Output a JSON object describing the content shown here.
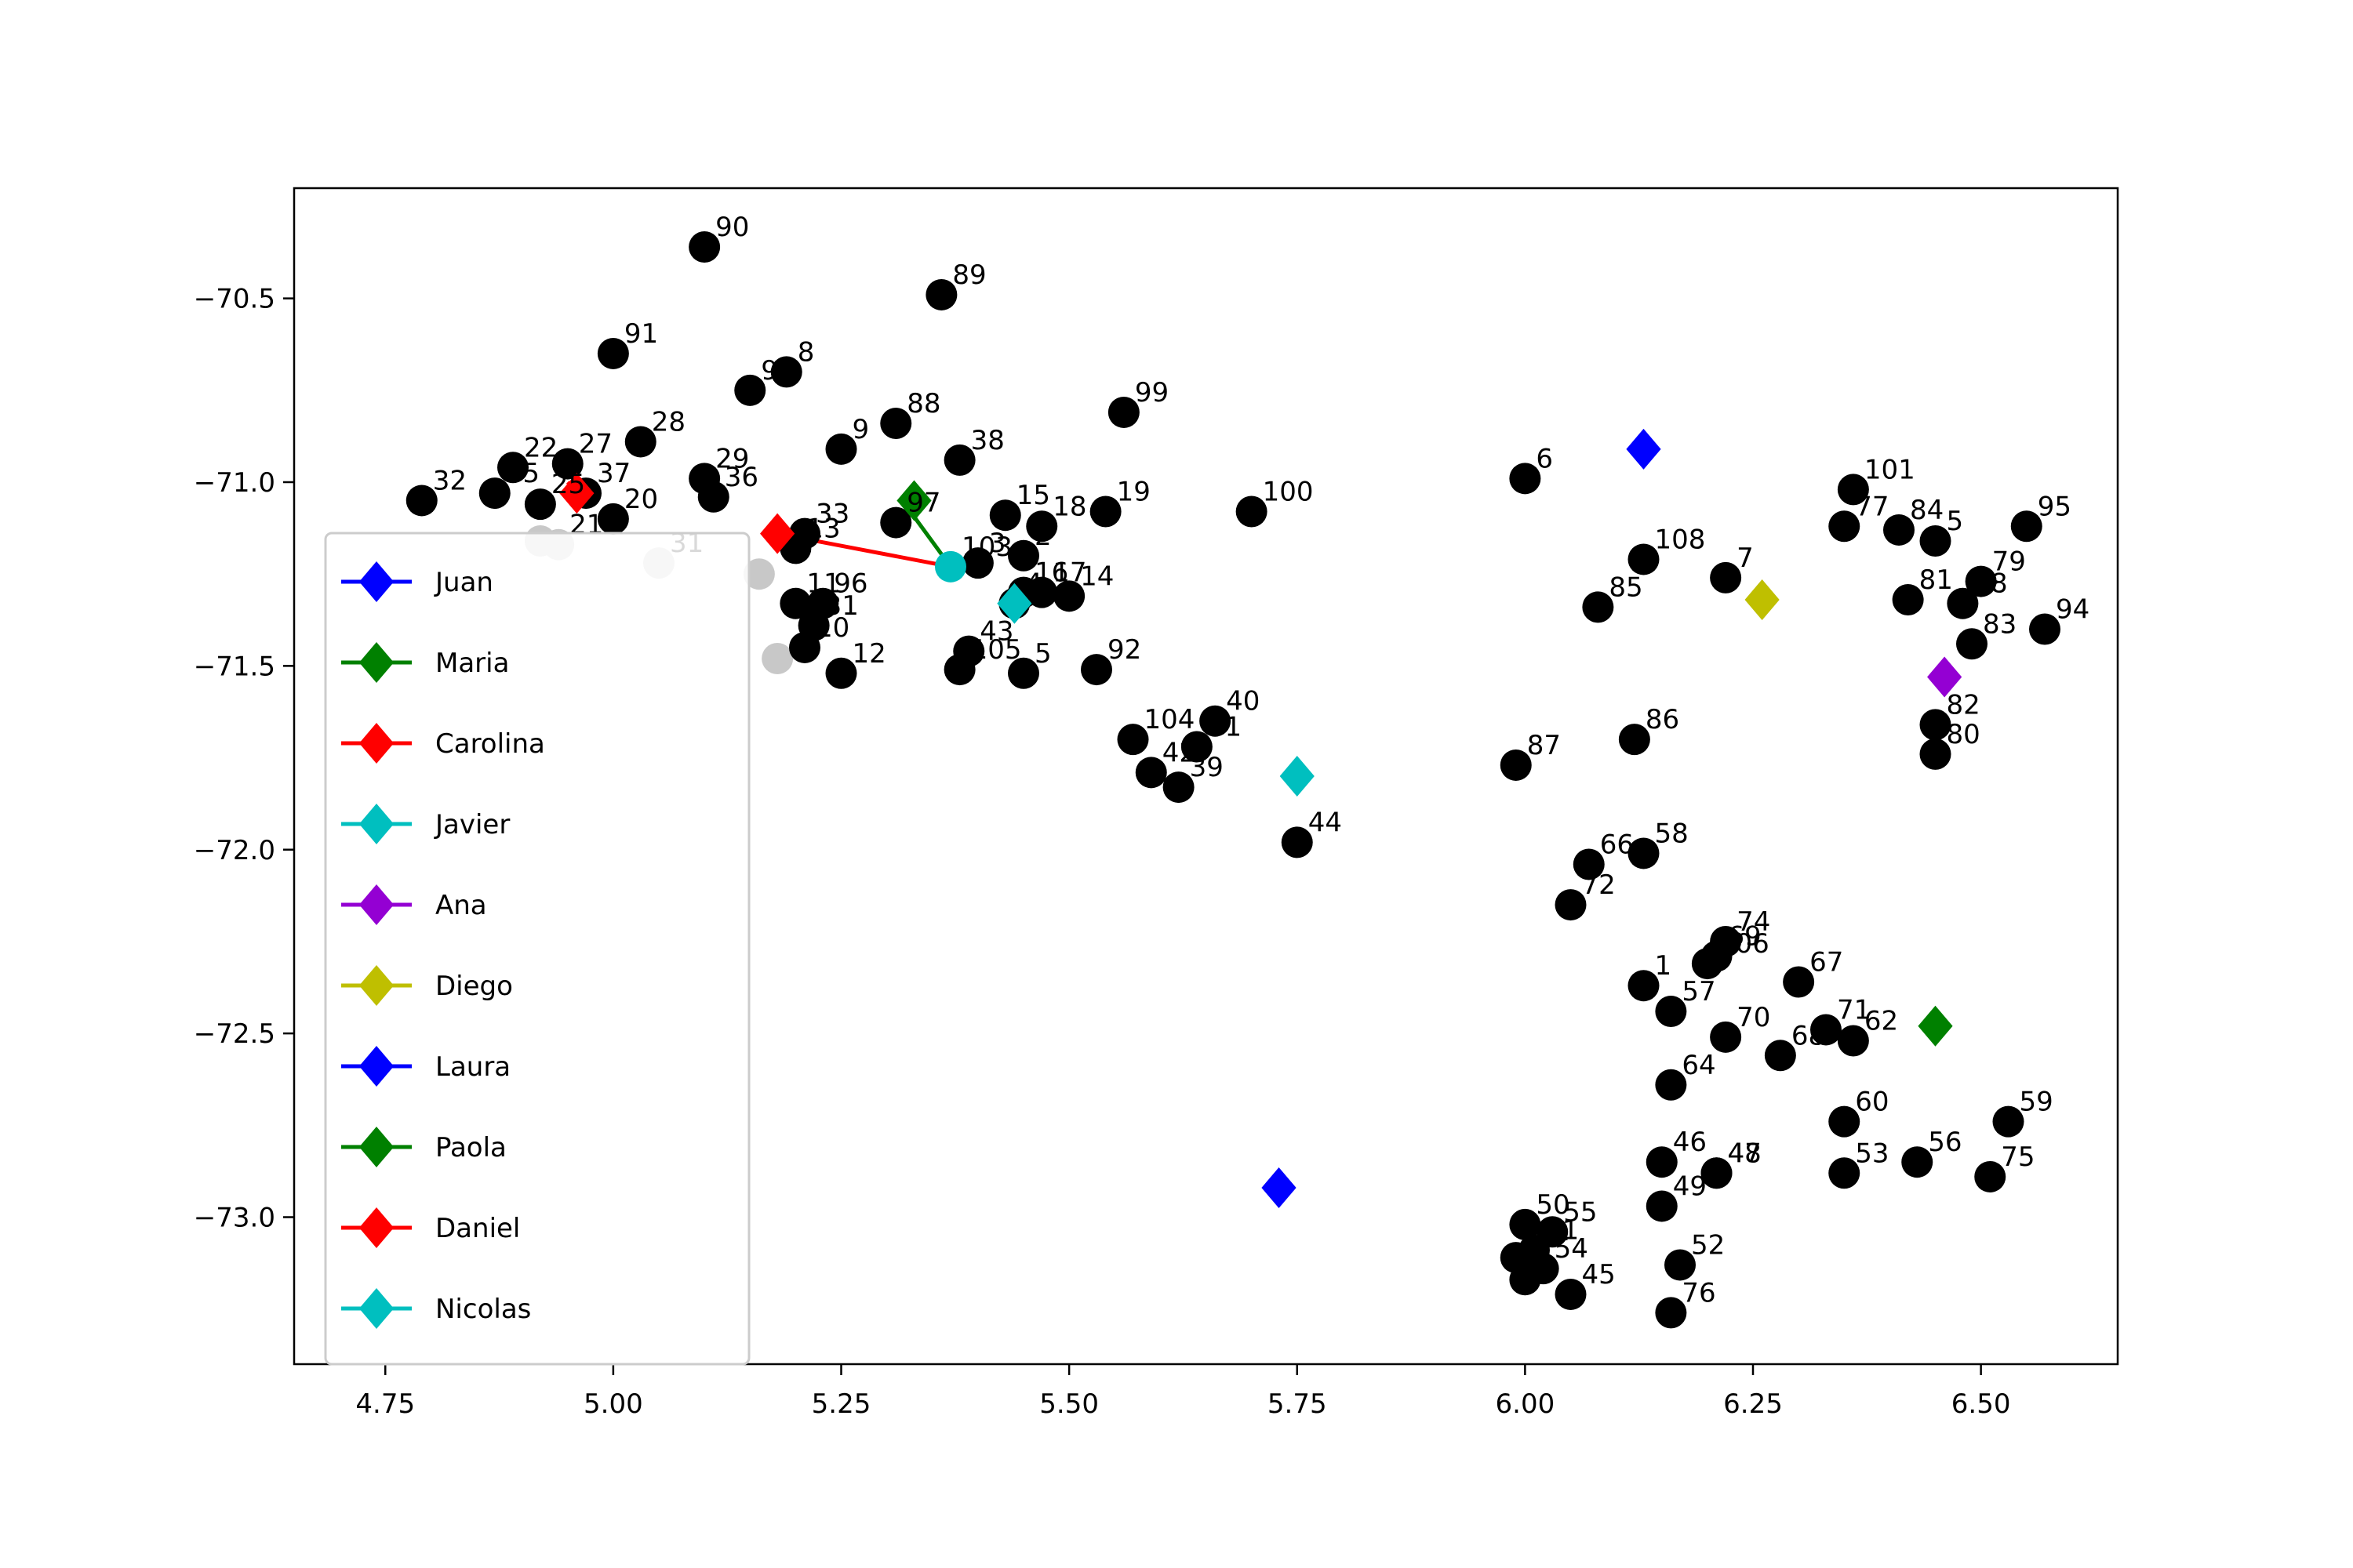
{
  "chart_data": {
    "type": "scatter",
    "title": "",
    "xlabel": "",
    "ylabel": "",
    "xlim": [
      4.65,
      6.65
    ],
    "ylim": [
      -73.4,
      -70.2
    ],
    "x_ticks": [
      4.75,
      5.0,
      5.25,
      5.5,
      5.75,
      6.0,
      6.25,
      6.5
    ],
    "x_tick_labels": [
      "4.75",
      "5.00",
      "5.25",
      "5.50",
      "5.75",
      "6.00",
      "6.25",
      "6.50"
    ],
    "y_ticks": [
      -70.5,
      -71.0,
      -71.5,
      -72.0,
      -72.5,
      -73.0
    ],
    "y_tick_labels": [
      "−70.5",
      "−71.0",
      "−71.5",
      "−72.0",
      "−72.5",
      "−73.0"
    ],
    "grid": false,
    "legend_position": "lower-left",
    "node_color": "#000000",
    "visited_color": "#c8c8c8",
    "points": [
      {
        "label": "90",
        "x": 5.1,
        "y": -70.36
      },
      {
        "label": "89",
        "x": 5.36,
        "y": -70.49
      },
      {
        "label": "91",
        "x": 5.0,
        "y": -70.65
      },
      {
        "label": "9",
        "x": 5.15,
        "y": -70.75
      },
      {
        "label": "8",
        "x": 5.19,
        "y": -70.7
      },
      {
        "label": "99",
        "x": 5.56,
        "y": -70.81
      },
      {
        "label": "88",
        "x": 5.31,
        "y": -70.84
      },
      {
        "label": "9",
        "x": 5.25,
        "y": -70.91
      },
      {
        "label": "28",
        "x": 5.03,
        "y": -70.89
      },
      {
        "label": "38",
        "x": 5.38,
        "y": -70.94
      },
      {
        "label": "27",
        "x": 4.95,
        "y": -70.95
      },
      {
        "label": "22",
        "x": 4.89,
        "y": -70.96
      },
      {
        "label": "29",
        "x": 5.1,
        "y": -70.99
      },
      {
        "label": "36",
        "x": 5.11,
        "y": -71.04
      },
      {
        "label": "32",
        "x": 4.79,
        "y": -71.05
      },
      {
        "label": "35",
        "x": 4.87,
        "y": -71.03
      },
      {
        "label": "37",
        "x": 4.97,
        "y": -71.03
      },
      {
        "label": "20",
        "x": 5.0,
        "y": -71.1
      },
      {
        "label": "25",
        "x": 4.92,
        "y": -71.06
      },
      {
        "label": "6",
        "x": 6.0,
        "y": -70.99
      },
      {
        "label": "101",
        "x": 6.36,
        "y": -71.02
      },
      {
        "label": "95",
        "x": 6.55,
        "y": -71.12
      },
      {
        "label": "77",
        "x": 6.35,
        "y": -71.12
      },
      {
        "label": "84",
        "x": 6.41,
        "y": -71.13
      },
      {
        "label": "5",
        "x": 6.45,
        "y": -71.16
      },
      {
        "label": "15",
        "x": 5.43,
        "y": -71.09
      },
      {
        "label": "18",
        "x": 5.47,
        "y": -71.12
      },
      {
        "label": "19",
        "x": 5.54,
        "y": -71.08
      },
      {
        "label": "100",
        "x": 5.7,
        "y": -71.08
      },
      {
        "label": "97",
        "x": 5.31,
        "y": -71.11
      },
      {
        "label": "33",
        "x": 5.21,
        "y": -71.14
      },
      {
        "label": "13",
        "x": 5.2,
        "y": -71.18
      },
      {
        "label": "3",
        "x": 5.4,
        "y": -71.22
      },
      {
        "label": "2",
        "x": 5.45,
        "y": -71.2
      },
      {
        "label": "108",
        "x": 6.13,
        "y": -71.21
      },
      {
        "label": "7",
        "x": 6.22,
        "y": -71.26
      },
      {
        "label": "79",
        "x": 6.5,
        "y": -71.27
      },
      {
        "label": "81",
        "x": 6.42,
        "y": -71.32
      },
      {
        "label": "78",
        "x": 6.48,
        "y": -71.33
      },
      {
        "label": "85",
        "x": 6.08,
        "y": -71.34
      },
      {
        "label": "94",
        "x": 6.57,
        "y": -71.4
      },
      {
        "label": "83",
        "x": 6.49,
        "y": -71.44
      },
      {
        "label": "16",
        "x": 5.45,
        "y": -71.3
      },
      {
        "label": "17",
        "x": 5.47,
        "y": -71.3
      },
      {
        "label": "14",
        "x": 5.5,
        "y": -71.31
      },
      {
        "label": "96",
        "x": 5.23,
        "y": -71.33
      },
      {
        "label": "11",
        "x": 5.2,
        "y": -71.33
      },
      {
        "label": "31",
        "x": 5.22,
        "y": -71.39
      },
      {
        "label": "4",
        "x": 5.44,
        "y": -71.33
      },
      {
        "label": "10",
        "x": 5.21,
        "y": -71.45
      },
      {
        "label": "12",
        "x": 5.25,
        "y": -71.52
      },
      {
        "label": "43",
        "x": 5.39,
        "y": -71.46
      },
      {
        "label": "105",
        "x": 5.38,
        "y": -71.51
      },
      {
        "label": "5",
        "x": 5.45,
        "y": -71.52
      },
      {
        "label": "92",
        "x": 5.53,
        "y": -71.51
      },
      {
        "label": "40",
        "x": 5.66,
        "y": -71.65
      },
      {
        "label": "41",
        "x": 5.64,
        "y": -71.72
      },
      {
        "label": "104",
        "x": 5.57,
        "y": -71.7
      },
      {
        "label": "42",
        "x": 5.59,
        "y": -71.79
      },
      {
        "label": "39",
        "x": 5.62,
        "y": -71.83
      },
      {
        "label": "82",
        "x": 6.45,
        "y": -71.66
      },
      {
        "label": "80",
        "x": 6.45,
        "y": -71.74
      },
      {
        "label": "86",
        "x": 6.12,
        "y": -71.7
      },
      {
        "label": "87",
        "x": 5.99,
        "y": -71.77
      },
      {
        "label": "44",
        "x": 5.75,
        "y": -71.98
      },
      {
        "label": "66",
        "x": 6.07,
        "y": -72.04
      },
      {
        "label": "58",
        "x": 6.13,
        "y": -72.01
      },
      {
        "label": "72",
        "x": 6.05,
        "y": -72.15
      },
      {
        "label": "74",
        "x": 6.22,
        "y": -72.25
      },
      {
        "label": "69",
        "x": 6.21,
        "y": -72.29
      },
      {
        "label": "106",
        "x": 6.2,
        "y": -72.31
      },
      {
        "label": "67",
        "x": 6.3,
        "y": -72.36
      },
      {
        "label": "1",
        "x": 6.13,
        "y": -72.37
      },
      {
        "label": "57",
        "x": 6.16,
        "y": -72.44
      },
      {
        "label": "70",
        "x": 6.22,
        "y": -72.51
      },
      {
        "label": "71",
        "x": 6.33,
        "y": -72.49
      },
      {
        "label": "62",
        "x": 6.36,
        "y": -72.52
      },
      {
        "label": "68",
        "x": 6.28,
        "y": -72.56
      },
      {
        "label": "64",
        "x": 6.16,
        "y": -72.64
      },
      {
        "label": "60",
        "x": 6.35,
        "y": -72.74
      },
      {
        "label": "59",
        "x": 6.53,
        "y": -72.74
      },
      {
        "label": "46",
        "x": 6.15,
        "y": -72.85
      },
      {
        "label": "47",
        "x": 6.21,
        "y": -72.88
      },
      {
        "label": "48",
        "x": 6.21,
        "y": -72.88
      },
      {
        "label": "53",
        "x": 6.35,
        "y": -72.88
      },
      {
        "label": "56",
        "x": 6.43,
        "y": -72.85
      },
      {
        "label": "75",
        "x": 6.51,
        "y": -72.89
      },
      {
        "label": "49",
        "x": 6.15,
        "y": -72.97
      },
      {
        "label": "50",
        "x": 6.0,
        "y": -73.02
      },
      {
        "label": "55",
        "x": 6.03,
        "y": -73.04
      },
      {
        "label": "51",
        "x": 6.01,
        "y": -73.09
      },
      {
        "label": "54",
        "x": 6.02,
        "y": -73.14
      },
      {
        "label": "",
        "x": 5.99,
        "y": -73.11
      },
      {
        "label": "",
        "x": 6.0,
        "y": -73.17
      },
      {
        "label": "52",
        "x": 6.17,
        "y": -73.13
      },
      {
        "label": "45",
        "x": 6.05,
        "y": -73.21
      },
      {
        "label": "76",
        "x": 6.16,
        "y": -73.26
      }
    ],
    "visited_points": [
      {
        "label": "31",
        "x": 5.05,
        "y": -71.22
      },
      {
        "label": "",
        "x": 5.16,
        "y": -71.25
      },
      {
        "label": "",
        "x": 5.18,
        "y": -71.48
      },
      {
        "label": "",
        "x": 4.92,
        "y": -71.16
      },
      {
        "label": "21",
        "x": 4.94,
        "y": -71.17
      }
    ],
    "paths": [
      {
        "color": "#ff0000",
        "points": [
          [
            4.95,
            -71.0
          ],
          [
            4.97,
            -71.05
          ]
        ]
      },
      {
        "color": "#ff0000",
        "points": [
          [
            5.18,
            -71.14
          ],
          [
            5.37,
            -71.23
          ]
        ]
      },
      {
        "color": "#008000",
        "points": [
          [
            5.32,
            -71.06
          ],
          [
            5.37,
            -71.23
          ]
        ]
      }
    ],
    "current_points": [
      {
        "label": "103",
        "x": 5.37,
        "y": -71.23,
        "color": "#00bfbf"
      }
    ],
    "series": [
      {
        "name": "Juan",
        "color": "#0000ff",
        "marker": "diamond",
        "points": [
          [
            6.13,
            -70.91
          ]
        ]
      },
      {
        "name": "Maria",
        "color": "#008000",
        "marker": "diamond",
        "points": [
          [
            5.33,
            -71.05
          ]
        ]
      },
      {
        "name": "Carolina",
        "color": "#ff0000",
        "marker": "diamond",
        "points": [
          [
            5.18,
            -71.14
          ]
        ]
      },
      {
        "name": "Javier",
        "color": "#00bfbf",
        "marker": "diamond",
        "points": [
          [
            5.75,
            -71.8
          ]
        ]
      },
      {
        "name": "Ana",
        "color": "#9400d3",
        "marker": "diamond",
        "points": [
          [
            6.46,
            -71.53
          ]
        ]
      },
      {
        "name": "Diego",
        "color": "#bfbf00",
        "marker": "diamond",
        "points": [
          [
            6.26,
            -71.32
          ]
        ]
      },
      {
        "name": "Laura",
        "color": "#0000ff",
        "marker": "diamond",
        "points": [
          [
            5.73,
            -72.92
          ]
        ]
      },
      {
        "name": "Paola",
        "color": "#008000",
        "marker": "diamond",
        "points": [
          [
            6.45,
            -72.48
          ]
        ]
      },
      {
        "name": "Daniel",
        "color": "#ff0000",
        "marker": "diamond",
        "points": [
          [
            4.96,
            -71.03
          ]
        ]
      },
      {
        "name": "Nicolas",
        "color": "#00bfbf",
        "marker": "diamond",
        "points": [
          [
            5.44,
            -71.33
          ]
        ]
      }
    ]
  }
}
